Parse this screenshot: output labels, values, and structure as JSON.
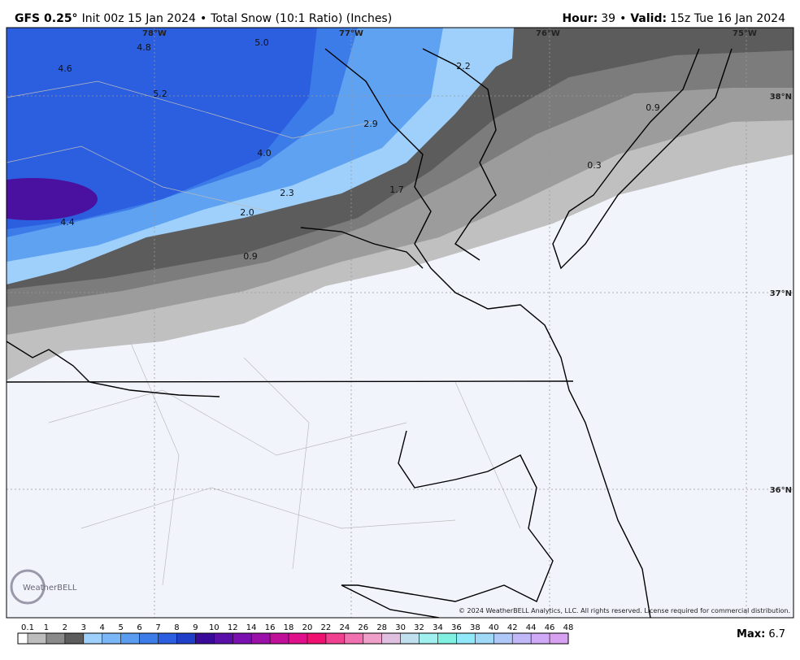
{
  "header": {
    "model": "GFS 0.25°",
    "init": "Init 00z 15 Jan 2024",
    "separator": "•",
    "product": "Total Snow (10:1 Ratio) (Inches)",
    "hour_label": "Hour:",
    "hour": "39",
    "valid_label": "Valid:",
    "valid": "15z Tue 16 Jan 2024"
  },
  "map": {
    "lon_labels": [
      "78°W",
      "77°W",
      "76°W",
      "75°W"
    ],
    "lat_labels": [
      "38°N",
      "37°N",
      "36°N"
    ],
    "contour_labels": [
      "4.8",
      "5.0",
      "4.6",
      "5.2",
      "2.2",
      "2.9",
      "4.0",
      "2.3",
      "1.7",
      "2.0",
      "4.4",
      "0.9",
      "0.9",
      "0.3"
    ],
    "logo": "WeatherBELL",
    "copyright": "© 2024 WeatherBELL Analytics, LLC. All rights reserved. License required for commercial distribution."
  },
  "colorbar": {
    "ticks": [
      0.1,
      1,
      2,
      3,
      4,
      5,
      6,
      7,
      8,
      9,
      10,
      12,
      14,
      16,
      18,
      20,
      22,
      24,
      26,
      28,
      30,
      32,
      34,
      36,
      38,
      40,
      42,
      44,
      46,
      48
    ],
    "colors": [
      "#ffffff",
      "#bdbdbd",
      "#8a8a8a",
      "#5c5c5c",
      "#9fd0fb",
      "#7bb6f6",
      "#5a9cf0",
      "#3c7ce8",
      "#2b5fe0",
      "#1f3fc8",
      "#3a0a9a",
      "#5a10a8",
      "#7a10b0",
      "#9a10a8",
      "#c0109a",
      "#e0108a",
      "#f01070",
      "#f04090",
      "#f070b0",
      "#f0a0c8",
      "#e0c0e0",
      "#c0e0f0",
      "#a0f0f0",
      "#80f0e0",
      "#90e8f8",
      "#a0d8f8",
      "#b0c8f8",
      "#c0b8f8",
      "#d0a8f8",
      "#d8a0f0"
    ],
    "max_label": "Max:",
    "max_value": 6.7
  }
}
